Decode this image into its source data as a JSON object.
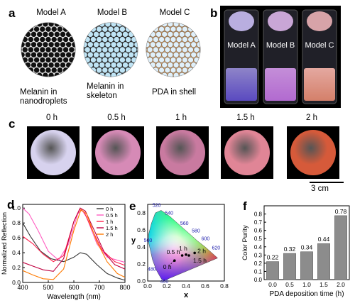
{
  "panels": {
    "a": "a",
    "b": "b",
    "c": "c",
    "d": "d",
    "e": "e",
    "f": "f"
  },
  "panel_a": {
    "models": [
      {
        "title": "Model A",
        "caption_lines": [
          "Melanin in",
          "nanodroplets"
        ]
      },
      {
        "title": "Model B",
        "caption_lines": [
          "Melanin in",
          "skeleton"
        ]
      },
      {
        "title": "Model C",
        "caption_lines": [
          "PDA in shell"
        ]
      }
    ]
  },
  "panel_b": {
    "vials": [
      "Model A",
      "Model B",
      "Model C"
    ],
    "colors": {
      "a_top": "#b9aee0",
      "a_bottom": "#6a5bd0",
      "b_top": "#c9a6d6",
      "b_bottom": "#d08ae0",
      "c_top": "#d7a3a8",
      "c_bottom": "#e0a07f"
    }
  },
  "panel_c": {
    "times": [
      "0 h",
      "0.5 h",
      "1 h",
      "1.5 h",
      "2 h"
    ],
    "scale_bar": "3 cm",
    "disc_colors": [
      "#d7d2ee",
      "#d68ab6",
      "#c97aa0",
      "#e08596",
      "#d65a3a"
    ]
  },
  "panel_d": {
    "chart_data": {
      "type": "line",
      "xlabel": "Wavelength (nm)",
      "ylabel": "Normalized Reflection",
      "xlim": [
        400,
        800
      ],
      "ylim": [
        0.0,
        1.05
      ],
      "xticks": [
        "400",
        "500",
        "600",
        "700",
        "800"
      ],
      "yticks": [
        "0.0",
        "0.2",
        "0.4",
        "0.6",
        "0.8",
        "1.0"
      ],
      "legend_position": "top-right",
      "series": [
        {
          "name": "0 h",
          "color": "#333333",
          "points": [
            [
              400,
              0.8
            ],
            [
              430,
              0.62
            ],
            [
              470,
              0.42
            ],
            [
              510,
              0.32
            ],
            [
              560,
              0.28
            ],
            [
              600,
              0.34
            ],
            [
              625,
              0.4
            ],
            [
              650,
              0.38
            ],
            [
              690,
              0.24
            ],
            [
              730,
              0.12
            ],
            [
              770,
              0.06
            ],
            [
              800,
              0.03
            ]
          ]
        },
        {
          "name": "0.5 h",
          "color": "#ff5ec1",
          "points": [
            [
              400,
              1.0
            ],
            [
              425,
              0.92
            ],
            [
              460,
              0.7
            ],
            [
              500,
              0.42
            ],
            [
              540,
              0.3
            ],
            [
              580,
              0.52
            ],
            [
              615,
              0.92
            ],
            [
              630,
              0.98
            ],
            [
              650,
              0.88
            ],
            [
              690,
              0.52
            ],
            [
              730,
              0.34
            ],
            [
              800,
              0.27
            ]
          ]
        },
        {
          "name": "1 h",
          "color": "#ff1f4b",
          "points": [
            [
              400,
              0.62
            ],
            [
              440,
              0.52
            ],
            [
              480,
              0.38
            ],
            [
              520,
              0.28
            ],
            [
              560,
              0.36
            ],
            [
              600,
              0.82
            ],
            [
              622,
              0.98
            ],
            [
              640,
              0.95
            ],
            [
              670,
              0.72
            ],
            [
              710,
              0.44
            ],
            [
              760,
              0.28
            ],
            [
              800,
              0.23
            ]
          ]
        },
        {
          "name": "1.5 h",
          "color": "#c00040",
          "points": [
            [
              400,
              0.27
            ],
            [
              440,
              0.22
            ],
            [
              480,
              0.17
            ],
            [
              520,
              0.15
            ],
            [
              560,
              0.32
            ],
            [
              600,
              0.82
            ],
            [
              625,
              1.0
            ],
            [
              645,
              0.96
            ],
            [
              680,
              0.7
            ],
            [
              720,
              0.4
            ],
            [
              760,
              0.24
            ],
            [
              800,
              0.18
            ]
          ]
        },
        {
          "name": "2 h",
          "color": "#ff7a00",
          "points": [
            [
              400,
              0.16
            ],
            [
              440,
              0.1
            ],
            [
              480,
              0.05
            ],
            [
              520,
              0.04
            ],
            [
              560,
              0.18
            ],
            [
              600,
              0.7
            ],
            [
              628,
              0.98
            ],
            [
              650,
              0.92
            ],
            [
              690,
              0.55
            ],
            [
              730,
              0.28
            ],
            [
              770,
              0.12
            ],
            [
              800,
              0.07
            ]
          ]
        }
      ]
    }
  },
  "panel_e": {
    "chart_data": {
      "type": "scatter",
      "xlabel": "x",
      "ylabel": "y",
      "xlim": [
        0.0,
        0.8
      ],
      "ylim": [
        0.0,
        0.9
      ],
      "xticks": [
        "0.0",
        "0.2",
        "0.4",
        "0.6",
        "0.8"
      ],
      "yticks": [
        "0.0",
        "0.2",
        "0.4",
        "0.6",
        "0.8"
      ],
      "wavelength_labels": [
        "520",
        "540",
        "560",
        "580",
        "600",
        "620",
        "500",
        "480",
        "460"
      ],
      "points": [
        {
          "label": "0 h",
          "x": 0.28,
          "y": 0.24
        },
        {
          "label": "0.5 h",
          "x": 0.36,
          "y": 0.3
        },
        {
          "label": "1 h",
          "x": 0.4,
          "y": 0.31
        },
        {
          "label": "1.5 h",
          "x": 0.43,
          "y": 0.3
        },
        {
          "label": "2 h",
          "x": 0.49,
          "y": 0.33
        }
      ]
    }
  },
  "panel_f": {
    "chart_data": {
      "type": "bar",
      "categories": [
        "0.0",
        "0.5",
        "1.0",
        "1.5",
        "2.0"
      ],
      "values": [
        0.22,
        0.32,
        0.34,
        0.44,
        0.78
      ],
      "value_labels": [
        "0.22",
        "0.32",
        "0.34",
        "0.44",
        "0.78"
      ],
      "xlabel": "PDA deposition time (h)",
      "ylabel": "Color Purity",
      "ylim": [
        0,
        0.9
      ],
      "yticks": [
        "0.0",
        "0.1",
        "0.2",
        "0.3",
        "0.4",
        "0.5",
        "0.6",
        "0.7",
        "0.8"
      ],
      "bar_color": "#8c8c8c"
    }
  }
}
